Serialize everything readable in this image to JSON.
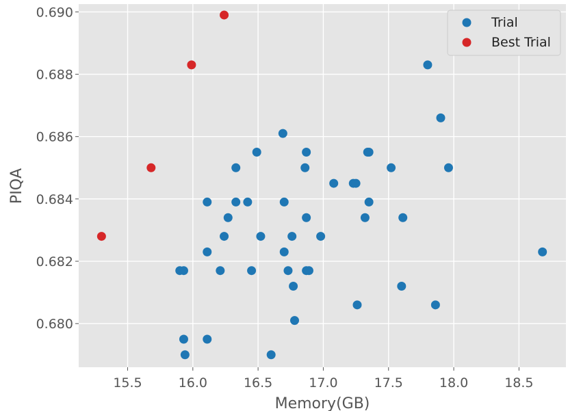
{
  "chart_data": {
    "type": "scatter",
    "title": "",
    "xlabel": "Memory(GB)",
    "ylabel": "PIQA",
    "xlim": [
      15.125,
      18.86
    ],
    "ylim": [
      0.6786,
      0.69025
    ],
    "xticks": [
      15.5,
      16.0,
      16.5,
      17.0,
      17.5,
      18.0,
      18.5
    ],
    "xtick_labels": [
      "15.5",
      "16.0",
      "16.5",
      "17.0",
      "17.5",
      "18.0",
      "18.5"
    ],
    "yticks": [
      0.68,
      0.682,
      0.684,
      0.686,
      0.688,
      0.69
    ],
    "ytick_labels": [
      "0.680",
      "0.682",
      "0.684",
      "0.686",
      "0.688",
      "0.690"
    ],
    "grid": true,
    "background": "#e5e5e5",
    "legend_position": "top-right",
    "series": [
      {
        "name": "Trial",
        "color": "#1f77b4",
        "points": [
          [
            15.9,
            0.6817
          ],
          [
            15.93,
            0.6817
          ],
          [
            15.93,
            0.6795
          ],
          [
            15.94,
            0.679
          ],
          [
            16.11,
            0.6839
          ],
          [
            16.11,
            0.6823
          ],
          [
            16.11,
            0.6795
          ],
          [
            16.21,
            0.6817
          ],
          [
            16.24,
            0.6828
          ],
          [
            16.27,
            0.6834
          ],
          [
            16.33,
            0.685
          ],
          [
            16.33,
            0.6839
          ],
          [
            16.42,
            0.6839
          ],
          [
            16.45,
            0.6817
          ],
          [
            16.49,
            0.6855
          ],
          [
            16.52,
            0.6828
          ],
          [
            16.6,
            0.679
          ],
          [
            16.69,
            0.6861
          ],
          [
            16.7,
            0.6839
          ],
          [
            16.7,
            0.6823
          ],
          [
            16.73,
            0.6817
          ],
          [
            16.76,
            0.6828
          ],
          [
            16.77,
            0.6812
          ],
          [
            16.78,
            0.6801
          ],
          [
            16.86,
            0.685
          ],
          [
            16.87,
            0.6855
          ],
          [
            16.87,
            0.6834
          ],
          [
            16.87,
            0.6817
          ],
          [
            16.89,
            0.6817
          ],
          [
            16.98,
            0.6828
          ],
          [
            17.08,
            0.6845
          ],
          [
            17.23,
            0.6845
          ],
          [
            17.25,
            0.6845
          ],
          [
            17.26,
            0.6806
          ],
          [
            17.32,
            0.6834
          ],
          [
            17.34,
            0.6855
          ],
          [
            17.35,
            0.6855
          ],
          [
            17.35,
            0.6839
          ],
          [
            17.52,
            0.685
          ],
          [
            17.6,
            0.6812
          ],
          [
            17.61,
            0.6834
          ],
          [
            17.8,
            0.6883
          ],
          [
            17.86,
            0.6806
          ],
          [
            17.9,
            0.6866
          ],
          [
            17.96,
            0.685
          ],
          [
            18.68,
            0.6823
          ]
        ]
      },
      {
        "name": "Best Trial",
        "color": "#d62728",
        "points": [
          [
            15.3,
            0.6828
          ],
          [
            15.68,
            0.685
          ],
          [
            15.99,
            0.6883
          ],
          [
            16.24,
            0.6899
          ]
        ]
      }
    ]
  }
}
